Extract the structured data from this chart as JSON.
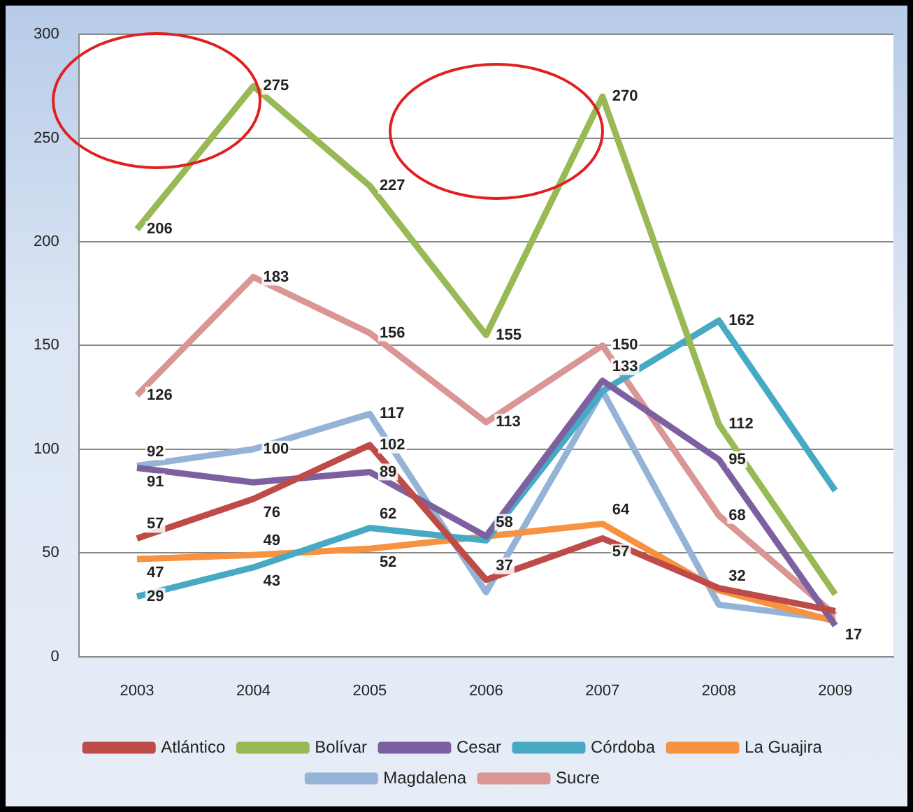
{
  "chart_data": {
    "type": "line",
    "categories": [
      "2003",
      "2004",
      "2005",
      "2006",
      "2007",
      "2008",
      "2009"
    ],
    "ylim": [
      0,
      300
    ],
    "yticks": [
      0,
      50,
      100,
      150,
      200,
      250,
      300
    ],
    "grid": "y",
    "legend": "bottom",
    "marker": "none",
    "series": [
      {
        "name": "Atlántico",
        "color": "#be4b48",
        "values": [
          57,
          76,
          102,
          37,
          57,
          33,
          22
        ],
        "value_labels": [
          "57",
          "76",
          "102",
          "37",
          "57",
          null,
          null
        ]
      },
      {
        "name": "Bolívar",
        "color": "#98b954",
        "values": [
          206,
          275,
          227,
          155,
          270,
          112,
          30
        ],
        "value_labels": [
          "206",
          "275",
          "227",
          "155",
          "270",
          "112",
          null
        ]
      },
      {
        "name": "Cesar",
        "color": "#7d60a0",
        "values": [
          91,
          84,
          89,
          58,
          133,
          95,
          15
        ],
        "value_labels": [
          "91",
          null,
          "89",
          null,
          "133",
          "95",
          null
        ]
      },
      {
        "name": "Córdoba",
        "color": "#46aac5",
        "values": [
          29,
          43,
          62,
          56,
          128,
          162,
          80
        ],
        "value_labels": [
          "29",
          "43",
          "62",
          null,
          null,
          "162",
          null
        ]
      },
      {
        "name": "La Guajira",
        "color": "#f69240",
        "values": [
          47,
          49,
          52,
          58,
          64,
          32,
          17
        ],
        "value_labels": [
          "47",
          "49",
          "52",
          "58",
          "64",
          "32",
          "17"
        ]
      },
      {
        "name": "Magdalena",
        "color": "#95b3d7",
        "values": [
          92,
          100,
          117,
          31,
          128,
          25,
          18
        ],
        "value_labels": [
          "92",
          "100",
          "117",
          null,
          null,
          null,
          null
        ]
      },
      {
        "name": "Sucre",
        "color": "#da9694",
        "values": [
          126,
          183,
          156,
          113,
          150,
          68,
          20
        ],
        "value_labels": [
          "126",
          "183",
          "156",
          "113",
          "150",
          "68",
          null
        ]
      }
    ]
  }
}
